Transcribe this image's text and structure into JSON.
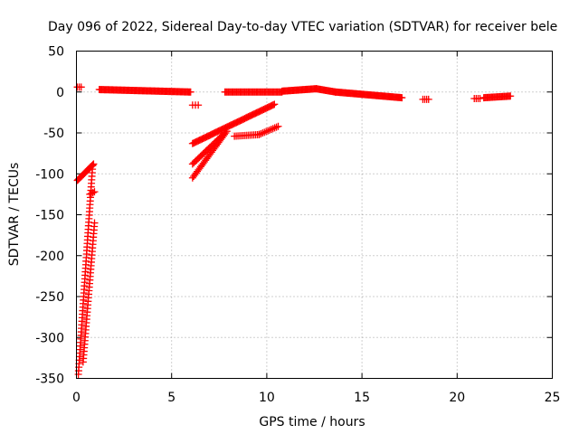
{
  "chart_data": {
    "type": "scatter",
    "title": "Day 096 of 2022, Sidereal Day-to-day VTEC variation (SDTVAR) for receiver bele",
    "xlabel": "GPS time / hours",
    "ylabel": "SDTVAR / TECUs",
    "xlim": [
      0,
      25
    ],
    "ylim": [
      -350,
      50
    ],
    "xticks": [
      0,
      5,
      10,
      15,
      20,
      25
    ],
    "yticks": [
      50,
      0,
      -50,
      -100,
      -150,
      -200,
      -250,
      -300,
      -350
    ],
    "grid": true,
    "marker": "+",
    "color": "#ff0000",
    "segments": [
      {
        "x0": 0.05,
        "y0": 6,
        "x1": 0.25,
        "y1": 6,
        "n": 3
      },
      {
        "x0": 1.2,
        "y0": 3,
        "x1": 6.0,
        "y1": 0,
        "n": 90
      },
      {
        "x0": 6.1,
        "y0": -16,
        "x1": 6.4,
        "y1": -16,
        "n": 3
      },
      {
        "x0": 7.8,
        "y0": 0,
        "x1": 10.8,
        "y1": 0,
        "n": 50
      },
      {
        "x0": 10.8,
        "y0": 1,
        "x1": 12.6,
        "y1": 4,
        "n": 35
      },
      {
        "x0": 12.6,
        "y0": 4,
        "x1": 13.6,
        "y1": 0,
        "n": 20
      },
      {
        "x0": 13.6,
        "y0": 0,
        "x1": 17.1,
        "y1": -7,
        "n": 70
      },
      {
        "x0": 18.2,
        "y0": -9,
        "x1": 18.5,
        "y1": -9,
        "n": 4
      },
      {
        "x0": 20.9,
        "y0": -8,
        "x1": 21.2,
        "y1": -8,
        "n": 4
      },
      {
        "x0": 21.4,
        "y0": -7,
        "x1": 22.8,
        "y1": -5,
        "n": 25
      },
      {
        "x0": 0.05,
        "y0": -108,
        "x1": 0.9,
        "y1": -88,
        "n": 22
      },
      {
        "x0": 0.1,
        "y0": -345,
        "x1": 0.85,
        "y1": -90,
        "n": 60
      },
      {
        "x0": 0.35,
        "y0": -330,
        "x1": 0.95,
        "y1": -160,
        "n": 40
      },
      {
        "x0": 0.7,
        "y0": -125,
        "x1": 0.95,
        "y1": -122,
        "n": 4
      },
      {
        "x0": 6.1,
        "y0": -63,
        "x1": 10.4,
        "y1": -15,
        "n": 70
      },
      {
        "x0": 6.1,
        "y0": -88,
        "x1": 7.8,
        "y1": -50,
        "n": 25
      },
      {
        "x0": 6.1,
        "y0": -105,
        "x1": 7.9,
        "y1": -48,
        "n": 30
      },
      {
        "x0": 8.3,
        "y0": -54,
        "x1": 9.6,
        "y1": -52,
        "n": 15
      },
      {
        "x0": 9.6,
        "y0": -52,
        "x1": 10.6,
        "y1": -42,
        "n": 12
      }
    ]
  }
}
